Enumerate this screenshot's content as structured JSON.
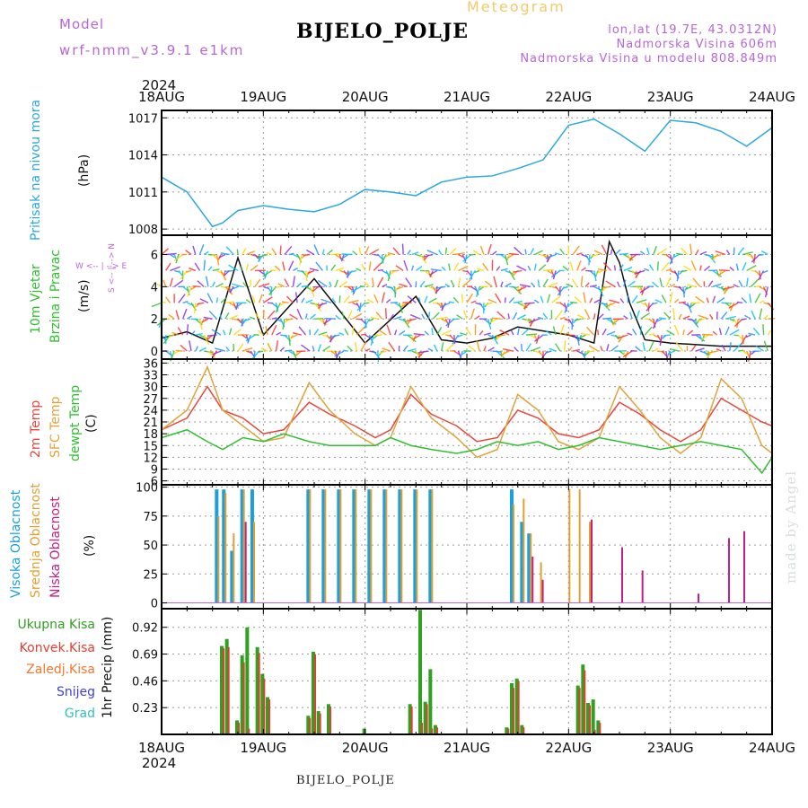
{
  "header": {
    "model_label": "Model",
    "model_value": "wrf-nmm_v3.9.1  e1km",
    "title": "BIJELO_POLJE",
    "product": "Meteogram",
    "lonlat": "lon,lat (19.7E, 43.0312N)",
    "altitude": "Nadmorska Visina 606m",
    "model_altitude": "Nadmorska Visina u modelu 808.849m"
  },
  "footer": {
    "station": "BIJELO_POLJE",
    "watermark": "made by Angel"
  },
  "x_axis": {
    "year": "2024",
    "ticks": [
      "18AUG",
      "19AUG",
      "20AUG",
      "21AUG",
      "22AUG",
      "23AUG",
      "24AUG"
    ]
  },
  "panels": {
    "pressure": {
      "title": "Pritisak na nivou mora",
      "unit": "(hPa)"
    },
    "wind": {
      "title_1": "10m Vjetar",
      "title_2": "Brzina i Pravac",
      "unit": "(m/s)",
      "compass_1": "W  <-- | -->  E",
      "compass_2": "S <-- | --> N"
    },
    "temp": {
      "t2m": "2m Temp",
      "sfc": "SFC Temp",
      "dew": "dewpt Temp",
      "unit": "(C)"
    },
    "cloud": {
      "high": "Visoka Oblacnost",
      "mid": "Srednja Oblacnost",
      "low": "Niska Oblacnost",
      "unit": "(%)"
    },
    "precip": {
      "total": "Ukupna Kisa",
      "conv": "Konvek.Kisa",
      "frozen": "Zaledj.Kisa",
      "snow": "Snijeg",
      "hail": "Grad",
      "unit": "1hr Precip (mm)"
    }
  },
  "colors": {
    "pressure": "#29a8e0",
    "t2m": "#e8463c",
    "sfc": "#e0a33c",
    "dew": "#2fc02f",
    "cloud_high": "#1aa0e0",
    "cloud_mid": "#e0a030",
    "cloud_low": "#c02080",
    "precip_total": "#2fa020",
    "precip_conv": "#e04030",
    "precip_frozen": "#f07830",
    "snow": "#4040e0",
    "hail": "#30c0c0",
    "title_purple": "#b766d9"
  },
  "chart_data": [
    {
      "type": "line",
      "name": "pressure",
      "ylabel": "Pritisak na nivou mora (hPa)",
      "ylim": [
        1007.5,
        1017.6
      ],
      "yticks": [
        1008,
        1011,
        1014,
        1017
      ],
      "grid": true,
      "x_unit": "days from 18AUG 00UTC",
      "x": [
        0,
        0.25,
        0.5,
        0.6,
        0.75,
        1.0,
        1.25,
        1.5,
        1.75,
        2.0,
        2.25,
        2.5,
        2.75,
        3.0,
        3.25,
        3.5,
        3.75,
        4.0,
        4.25,
        4.5,
        4.75,
        5.0,
        5.25,
        5.5,
        5.75,
        6.0
      ],
      "series": [
        {
          "values": [
            1012.2,
            1011.0,
            1008.2,
            1008.5,
            1009.5,
            1009.9,
            1009.6,
            1009.4,
            1010.0,
            1011.2,
            1011.0,
            1010.7,
            1011.8,
            1012.2,
            1012.3,
            1012.9,
            1013.6,
            1016.4,
            1016.9,
            1015.7,
            1014.3,
            1016.8,
            1016.6,
            1015.9,
            1014.7,
            1016.2
          ]
        }
      ]
    },
    {
      "type": "line",
      "name": "wind_speed",
      "ylabel": "10m Vjetar Brzina i Pravac (m/s)",
      "ylim": [
        -0.5,
        7.2
      ],
      "yticks": [
        0,
        2,
        4,
        6
      ],
      "grid": true,
      "note": "direction shown as colored arrows per hour",
      "x": [
        0,
        0.25,
        0.5,
        0.75,
        1.0,
        1.5,
        2.0,
        2.5,
        2.75,
        3.0,
        3.25,
        3.5,
        4.0,
        4.25,
        4.4,
        4.5,
        4.6,
        4.75,
        5.0,
        5.5,
        6.0
      ],
      "series": [
        {
          "values": [
            0.8,
            1.2,
            0.5,
            5.8,
            1.0,
            4.5,
            0.5,
            3.4,
            0.7,
            0.5,
            0.8,
            1.5,
            1.0,
            0.5,
            6.8,
            5.5,
            3.0,
            0.7,
            0.5,
            0.3,
            0.3
          ]
        }
      ]
    },
    {
      "type": "line",
      "name": "temperature",
      "ylabel": "(C)",
      "ylim": [
        5,
        37
      ],
      "yticks": [
        6,
        9,
        12,
        15,
        18,
        21,
        24,
        27,
        30,
        33,
        36
      ],
      "grid": true,
      "x": [
        0,
        0.25,
        0.45,
        0.6,
        0.8,
        1.0,
        1.2,
        1.45,
        1.65,
        1.9,
        2.1,
        2.25,
        2.45,
        2.65,
        2.9,
        3.1,
        3.3,
        3.5,
        3.7,
        3.9,
        4.1,
        4.3,
        4.5,
        4.7,
        4.9,
        5.1,
        5.3,
        5.5,
        5.7,
        5.9,
        6.0
      ],
      "series": [
        {
          "name": "2m Temp",
          "values": [
            19,
            22,
            30,
            24,
            22,
            18,
            19,
            26,
            23,
            20,
            17,
            19,
            28,
            23,
            20,
            16,
            17,
            24,
            22,
            18,
            17,
            19,
            26,
            23,
            19,
            16,
            19,
            27,
            24,
            21,
            20
          ]
        },
        {
          "name": "SFC Temp",
          "values": [
            19,
            24,
            35,
            24,
            20,
            16,
            17,
            31,
            24,
            18,
            15,
            17,
            30,
            22,
            17,
            12,
            14,
            28,
            24,
            16,
            14,
            17,
            30,
            24,
            17,
            13,
            17,
            32,
            27,
            15,
            13
          ]
        },
        {
          "name": "dewpt Temp",
          "values": [
            17,
            19,
            16,
            14,
            17,
            16,
            18,
            16,
            15,
            15,
            15,
            17,
            15,
            14,
            13,
            14,
            16,
            15,
            16,
            14,
            15,
            17,
            16,
            15,
            14,
            15,
            16,
            15,
            14,
            8,
            12
          ]
        }
      ]
    },
    {
      "type": "bar",
      "name": "cloudiness",
      "ylabel": "(%)",
      "ylim": [
        -5,
        102
      ],
      "yticks": [
        0,
        25,
        50,
        75,
        100
      ],
      "grid": true,
      "x": [
        0.55,
        0.62,
        0.7,
        0.8,
        0.9,
        1.45,
        1.6,
        1.75,
        1.9,
        2.05,
        2.2,
        2.35,
        2.5,
        2.65,
        3.45,
        3.55,
        3.62,
        3.72,
        4.0,
        4.1,
        4.2,
        4.5,
        4.7,
        5.25,
        5.55,
        5.7
      ],
      "series": [
        {
          "name": "Visoka Oblacnost",
          "values": [
            98,
            98,
            45,
            98,
            98,
            98,
            98,
            98,
            98,
            98,
            98,
            98,
            98,
            98,
            98,
            70,
            60,
            0,
            0,
            0,
            0,
            0,
            0,
            0,
            0,
            0
          ]
        },
        {
          "name": "Srednja Oblacnost",
          "values": [
            75,
            95,
            60,
            98,
            70,
            98,
            98,
            98,
            98,
            98,
            98,
            98,
            98,
            98,
            85,
            90,
            60,
            35,
            98,
            98,
            70,
            0,
            0,
            0,
            0,
            0
          ]
        },
        {
          "name": "Niska Oblacnost",
          "values": [
            0,
            0,
            0,
            70,
            0,
            0,
            0,
            0,
            0,
            0,
            0,
            0,
            0,
            0,
            0,
            0,
            40,
            20,
            0,
            0,
            72,
            48,
            28,
            8,
            56,
            62
          ]
        }
      ]
    },
    {
      "type": "bar",
      "name": "precipitation",
      "ylabel": "1hr Precip (mm)",
      "ylim": [
        0,
        1.08
      ],
      "yticks": [
        0.23,
        0.46,
        0.69,
        0.92
      ],
      "grid": true,
      "x": [
        0.6,
        0.65,
        0.75,
        0.8,
        0.85,
        0.95,
        1.0,
        1.05,
        1.45,
        1.5,
        1.55,
        1.65,
        2.0,
        2.45,
        2.55,
        2.6,
        2.65,
        2.7,
        3.4,
        3.45,
        3.5,
        3.55,
        4.1,
        4.15,
        4.2,
        4.25,
        4.3
      ],
      "series": [
        {
          "name": "Ukupna Kisa",
          "values": [
            0.76,
            0.82,
            0.12,
            0.68,
            0.92,
            0.75,
            0.52,
            0.32,
            0.16,
            0.71,
            0.2,
            0.26,
            0.05,
            0.26,
            1.07,
            0.28,
            0.56,
            0.08,
            0.06,
            0.44,
            0.48,
            0.08,
            0.42,
            0.6,
            0.27,
            0.3,
            0.12
          ]
        },
        {
          "name": "Konvek.Kisa",
          "values": [
            0.74,
            0.75,
            0.1,
            0.62,
            0.05,
            0.7,
            0.48,
            0.3,
            0.14,
            0.69,
            0.18,
            0.24,
            0.0,
            0.24,
            0.1,
            0.26,
            0.05,
            0.06,
            0.05,
            0.4,
            0.46,
            0.06,
            0.4,
            0.55,
            0.25,
            0.04,
            0.1
          ]
        }
      ]
    }
  ]
}
